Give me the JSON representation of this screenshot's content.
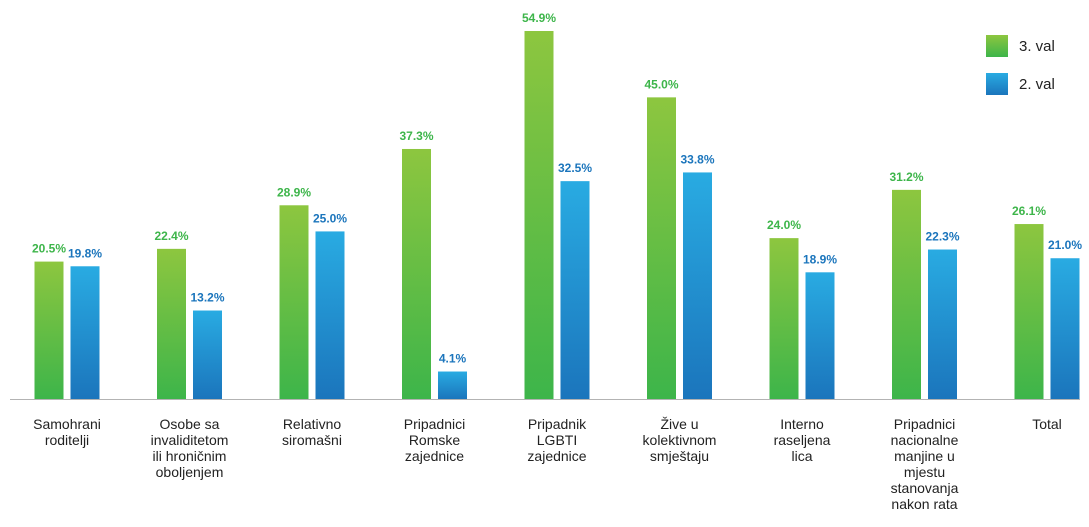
{
  "chart_data": {
    "type": "bar",
    "categories": [
      [
        "Samohrani",
        "roditelji"
      ],
      [
        "Osobe sa",
        "invaliditetom",
        "ili hroničnim",
        "oboljenjem"
      ],
      [
        "Relativno",
        "siromašni"
      ],
      [
        "Pripadnici",
        "Romske",
        "zajednice"
      ],
      [
        "Pripadnik",
        "LGBTI",
        "zajednice"
      ],
      [
        "Žive u",
        "kolektivnom",
        "smještaju"
      ],
      [
        "Interno",
        "raseljena",
        "lica"
      ],
      [
        "Pripadnici",
        "nacionalne",
        "manjine u",
        "mjestu",
        "stanovanja",
        "nakon rata"
      ],
      [
        "Total"
      ]
    ],
    "series": [
      {
        "name": "3. val",
        "values": [
          20.5,
          22.4,
          28.9,
          37.3,
          54.9,
          45.0,
          24.0,
          31.2,
          26.1
        ],
        "color_top": "#8dc63f",
        "color_bottom": "#3db54a",
        "label_color": "#3db54a"
      },
      {
        "name": "2. val",
        "values": [
          19.8,
          13.2,
          25.0,
          4.1,
          32.5,
          33.8,
          18.9,
          22.3,
          21.0
        ],
        "color_top": "#29abe2",
        "color_bottom": "#1b75bc",
        "label_color": "#1b75bc"
      }
    ],
    "value_suffix": "%",
    "ylim": [
      0,
      60
    ],
    "grid": false,
    "legend": "top-right"
  }
}
